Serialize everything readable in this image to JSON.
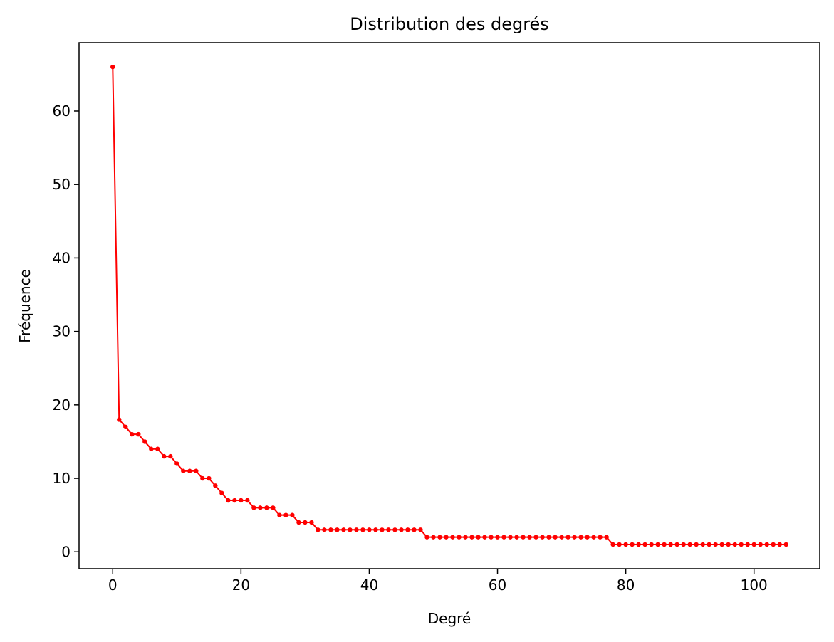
{
  "chart_data": {
    "type": "line",
    "title": "Distribution des degrés",
    "xlabel": "Degré",
    "ylabel": "Fréquence",
    "xlim": [
      -5.25,
      110.25
    ],
    "ylim": [
      -2.3,
      69.3
    ],
    "xticks": [
      0,
      20,
      40,
      60,
      80,
      100
    ],
    "yticks": [
      0,
      10,
      20,
      30,
      40,
      50,
      60
    ],
    "grid": false,
    "legend": "none",
    "series": [
      {
        "color": "#ff0000",
        "marker": "circle",
        "x": [
          0,
          1,
          2,
          3,
          4,
          5,
          6,
          7,
          8,
          9,
          10,
          11,
          12,
          13,
          14,
          15,
          16,
          17,
          18,
          19,
          20,
          21,
          22,
          23,
          24,
          25,
          26,
          27,
          28,
          29,
          30,
          31,
          32,
          33,
          34,
          35,
          36,
          37,
          38,
          39,
          40,
          41,
          42,
          43,
          44,
          45,
          46,
          47,
          48,
          49,
          50,
          51,
          52,
          53,
          54,
          55,
          56,
          57,
          58,
          59,
          60,
          61,
          62,
          63,
          64,
          65,
          66,
          67,
          68,
          69,
          70,
          71,
          72,
          73,
          74,
          75,
          76,
          77,
          78,
          79,
          80,
          81,
          82,
          83,
          84,
          85,
          86,
          87,
          88,
          89,
          90,
          91,
          92,
          93,
          94,
          95,
          96,
          97,
          98,
          99,
          100,
          101,
          102,
          103,
          104,
          105
        ],
        "y": [
          66,
          18,
          17,
          16,
          16,
          15,
          14,
          14,
          13,
          13,
          12,
          11,
          11,
          11,
          10,
          10,
          9,
          8,
          7,
          7,
          7,
          7,
          6,
          6,
          6,
          6,
          5,
          5,
          5,
          4,
          4,
          4,
          3,
          3,
          3,
          3,
          3,
          3,
          3,
          3,
          3,
          3,
          3,
          3,
          3,
          3,
          3,
          3,
          3,
          2,
          2,
          2,
          2,
          2,
          2,
          2,
          2,
          2,
          2,
          2,
          2,
          2,
          2,
          2,
          2,
          2,
          2,
          2,
          2,
          2,
          2,
          2,
          2,
          2,
          2,
          2,
          2,
          2,
          1,
          1,
          1,
          1,
          1,
          1,
          1,
          1,
          1,
          1,
          1,
          1,
          1,
          1,
          1,
          1,
          1,
          1,
          1,
          1,
          1,
          1,
          1,
          1,
          1,
          1,
          1,
          1
        ]
      }
    ]
  }
}
